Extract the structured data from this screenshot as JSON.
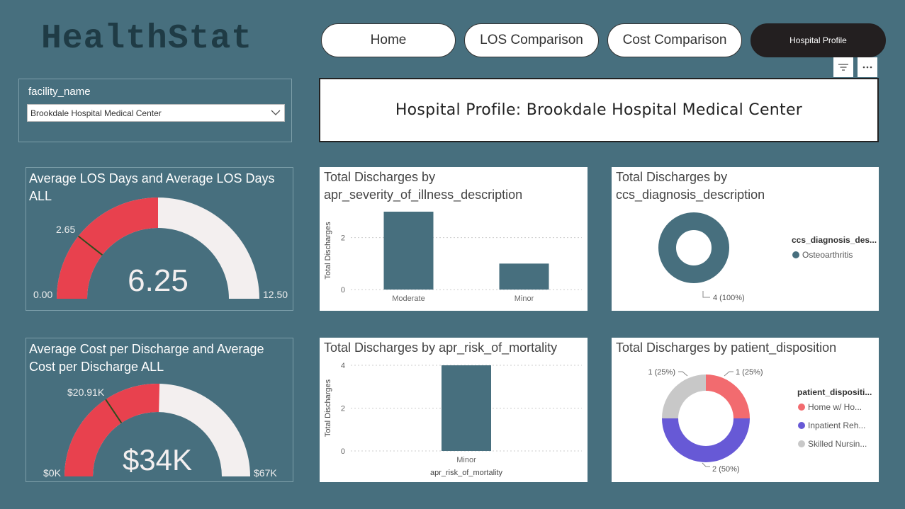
{
  "app": {
    "logo": "HealthStat"
  },
  "nav": {
    "home": "Home",
    "los": "LOS Comparison",
    "cost": "Cost Comparison",
    "profile": "Hospital Profile"
  },
  "slicer": {
    "label": "facility_name",
    "value": "Brookdale Hospital Medical Center"
  },
  "header": {
    "title": "Hospital Profile: Brookdale Hospital Medical Center"
  },
  "gauge_los": {
    "title": "Average LOS Days and Average LOS Days ALL",
    "value_label": "6.25",
    "min_label": "0.00",
    "max_label": "12.50",
    "target_label": "2.65",
    "value": 6.25,
    "min": 0,
    "max": 12.5,
    "target": 2.65
  },
  "gauge_cost": {
    "title": "Average Cost per Discharge and Average Cost per Discharge ALL",
    "value_label": "$34K",
    "min_label": "$0K",
    "max_label": "$67K",
    "target_label": "$20.91K",
    "value": 34,
    "min": 0,
    "max": 67,
    "target": 20.91
  },
  "colors": {
    "bar": "#476F7E",
    "gauge_fill": "#E8414E",
    "gauge_track": "#F3EFEF",
    "donut1": "#476F7E",
    "home": "#F26B6F",
    "inpatient": "#6759D6",
    "skilled": "#C8C8C8"
  },
  "chart_data": [
    {
      "type": "bar",
      "title": "Total Discharges by apr_severity_of_illness_description",
      "ylabel": "Total Discharges",
      "xlabel": "",
      "categories": [
        "Moderate",
        "Minor"
      ],
      "values": [
        3,
        1
      ],
      "ylim": [
        0,
        3
      ],
      "yticks": [
        "0",
        "2"
      ]
    },
    {
      "type": "pie",
      "title": "Total Discharges by ccs_diagnosis_description",
      "legend_title": "ccs_diagnosis_des...",
      "labels": [
        "Osteoarthritis"
      ],
      "values": [
        4
      ],
      "data_labels": [
        "4 (100%)"
      ]
    },
    {
      "type": "bar",
      "title": "Total Discharges by apr_risk_of_mortality",
      "ylabel": "Total Discharges",
      "xlabel": "apr_risk_of_mortality",
      "categories": [
        "Minor"
      ],
      "values": [
        4
      ],
      "ylim": [
        0,
        4
      ],
      "yticks": [
        "0",
        "2",
        "4"
      ]
    },
    {
      "type": "pie",
      "title": "Total Discharges by patient_disposition",
      "legend_title": "patient_dispositi...",
      "labels": [
        "Home w/ Ho...",
        "Inpatient Reh...",
        "Skilled Nursin..."
      ],
      "values": [
        1,
        2,
        1
      ],
      "data_labels": [
        "1 (25%)",
        "2 (50%)",
        "1 (25%)"
      ]
    }
  ]
}
